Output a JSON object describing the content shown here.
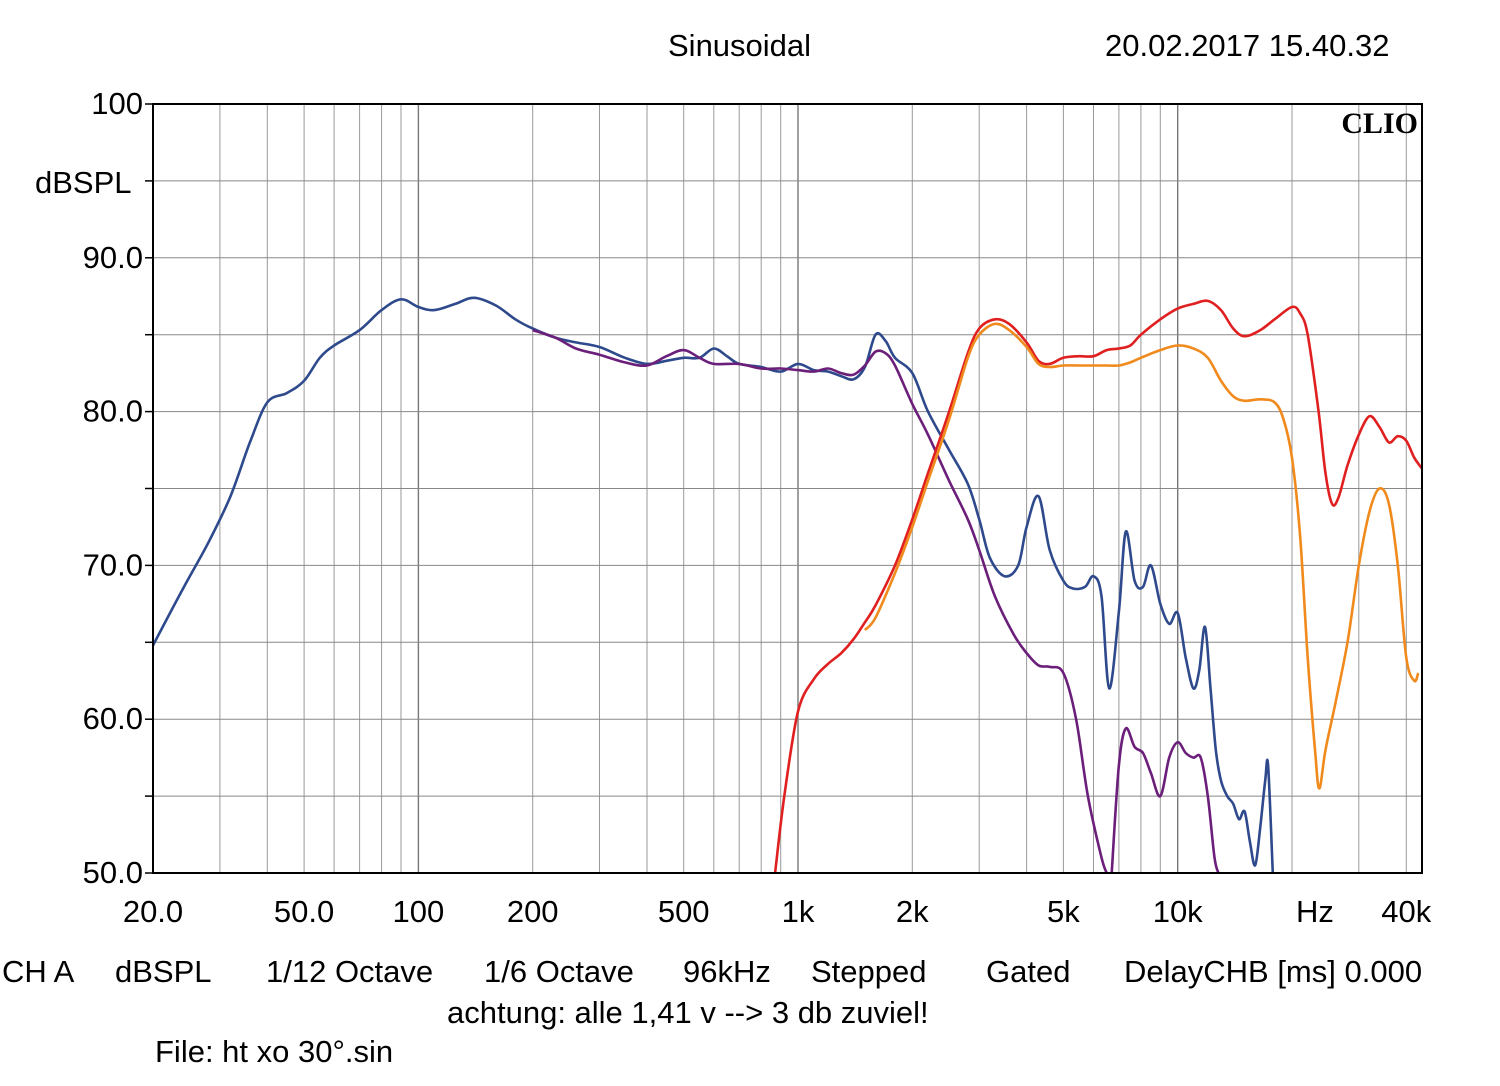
{
  "header": {
    "title": "Sinusoidal",
    "timestamp": "20.02.2017 15.40.32"
  },
  "brand": "CLIO",
  "chart_data": {
    "type": "line",
    "xscale": "log",
    "xlim": [
      20,
      44000
    ],
    "ylim": [
      50,
      100
    ],
    "ylabel": "dBSPL",
    "xunit": "Hz",
    "grid": true,
    "xticks": [
      {
        "v": 20,
        "label": "20.0"
      },
      {
        "v": 50,
        "label": "50.0"
      },
      {
        "v": 100,
        "label": "100"
      },
      {
        "v": 200,
        "label": "200"
      },
      {
        "v": 500,
        "label": "500"
      },
      {
        "v": 1000,
        "label": "1k"
      },
      {
        "v": 2000,
        "label": "2k"
      },
      {
        "v": 5000,
        "label": "5k"
      },
      {
        "v": 10000,
        "label": "10k"
      },
      {
        "v": 40000,
        "label": "40k"
      }
    ],
    "yticks": [
      {
        "v": 100,
        "label": "100"
      },
      {
        "v": 90,
        "label": "90.0"
      },
      {
        "v": 80,
        "label": "80.0"
      },
      {
        "v": 70,
        "label": "70.0"
      },
      {
        "v": 60,
        "label": "60.0"
      },
      {
        "v": 50,
        "label": "50.0"
      }
    ],
    "series": [
      {
        "color": "#2e4a8c",
        "points": [
          [
            20,
            64.8
          ],
          [
            24,
            68.5
          ],
          [
            28,
            71.5
          ],
          [
            32,
            74.5
          ],
          [
            36,
            78
          ],
          [
            40,
            80.6
          ],
          [
            45,
            81.2
          ],
          [
            50,
            82
          ],
          [
            55,
            83.5
          ],
          [
            60,
            84.3
          ],
          [
            70,
            85.3
          ],
          [
            80,
            86.6
          ],
          [
            90,
            87.3
          ],
          [
            100,
            86.8
          ],
          [
            110,
            86.6
          ],
          [
            125,
            87
          ],
          [
            140,
            87.4
          ],
          [
            160,
            86.9
          ],
          [
            180,
            86
          ],
          [
            200,
            85.4
          ],
          [
            230,
            84.8
          ],
          [
            260,
            84.5
          ],
          [
            300,
            84.2
          ],
          [
            350,
            83.5
          ],
          [
            400,
            83.1
          ],
          [
            450,
            83.3
          ],
          [
            500,
            83.5
          ],
          [
            550,
            83.5
          ],
          [
            600,
            84.1
          ],
          [
            650,
            83.6
          ],
          [
            700,
            83.1
          ],
          [
            800,
            82.9
          ],
          [
            900,
            82.6
          ],
          [
            1000,
            83.1
          ],
          [
            1100,
            82.7
          ],
          [
            1200,
            82.6
          ],
          [
            1300,
            82.3
          ],
          [
            1400,
            82.1
          ],
          [
            1500,
            82.9
          ],
          [
            1600,
            85
          ],
          [
            1700,
            84.6
          ],
          [
            1800,
            83.5
          ],
          [
            2000,
            82.5
          ],
          [
            2200,
            80
          ],
          [
            2500,
            77.5
          ],
          [
            2800,
            75.3
          ],
          [
            3000,
            73
          ],
          [
            3200,
            70.5
          ],
          [
            3500,
            69.3
          ],
          [
            3800,
            70
          ],
          [
            4000,
            72.5
          ],
          [
            4300,
            74.5
          ],
          [
            4600,
            71
          ],
          [
            5000,
            69
          ],
          [
            5300,
            68.5
          ],
          [
            5700,
            68.6
          ],
          [
            6000,
            69.3
          ],
          [
            6300,
            68
          ],
          [
            6600,
            62
          ],
          [
            7000,
            67
          ],
          [
            7300,
            72.2
          ],
          [
            7700,
            69
          ],
          [
            8100,
            68.6
          ],
          [
            8500,
            70
          ],
          [
            9000,
            67.5
          ],
          [
            9500,
            66.2
          ],
          [
            10000,
            66.9
          ],
          [
            10500,
            64
          ],
          [
            11000,
            62
          ],
          [
            11400,
            63.2
          ],
          [
            11800,
            66
          ],
          [
            12200,
            62
          ],
          [
            12600,
            58
          ],
          [
            13000,
            56
          ],
          [
            13500,
            55
          ],
          [
            14000,
            54.5
          ],
          [
            14500,
            53.5
          ],
          [
            15000,
            54
          ],
          [
            15500,
            52
          ],
          [
            16000,
            50.5
          ],
          [
            16500,
            53
          ],
          [
            17000,
            56
          ],
          [
            17300,
            57
          ],
          [
            17800,
            50
          ]
        ]
      },
      {
        "color": "#6b1f7a",
        "points": [
          [
            200,
            85.3
          ],
          [
            230,
            84.8
          ],
          [
            260,
            84.1
          ],
          [
            300,
            83.7
          ],
          [
            350,
            83.2
          ],
          [
            400,
            83
          ],
          [
            450,
            83.6
          ],
          [
            500,
            84
          ],
          [
            550,
            83.5
          ],
          [
            600,
            83.1
          ],
          [
            700,
            83.1
          ],
          [
            800,
            82.8
          ],
          [
            900,
            82.8
          ],
          [
            1000,
            82.7
          ],
          [
            1100,
            82.6
          ],
          [
            1200,
            82.8
          ],
          [
            1300,
            82.5
          ],
          [
            1400,
            82.4
          ],
          [
            1500,
            83
          ],
          [
            1600,
            83.9
          ],
          [
            1700,
            83.8
          ],
          [
            1800,
            83
          ],
          [
            2000,
            80.5
          ],
          [
            2200,
            78.5
          ],
          [
            2500,
            75.5
          ],
          [
            2800,
            73
          ],
          [
            3000,
            71
          ],
          [
            3300,
            68
          ],
          [
            3700,
            65.5
          ],
          [
            4000,
            64.3
          ],
          [
            4300,
            63.5
          ],
          [
            4600,
            63.4
          ],
          [
            5000,
            63
          ],
          [
            5400,
            60
          ],
          [
            5800,
            55
          ],
          [
            6300,
            51
          ],
          [
            6500,
            50
          ]
        ]
      },
      {
        "color": "#6b1f7a",
        "points": [
          [
            6700,
            50
          ],
          [
            7000,
            57
          ],
          [
            7300,
            59.4
          ],
          [
            7700,
            58.2
          ],
          [
            8100,
            57.8
          ],
          [
            8500,
            56.5
          ],
          [
            9000,
            55
          ],
          [
            9500,
            57.5
          ],
          [
            10000,
            58.5
          ],
          [
            10500,
            57.8
          ],
          [
            11000,
            57.5
          ],
          [
            11500,
            57.5
          ],
          [
            12000,
            55
          ],
          [
            12500,
            51
          ],
          [
            12800,
            50
          ]
        ]
      },
      {
        "color": "#e02020",
        "points": [
          [
            870,
            50
          ],
          [
            920,
            55
          ],
          [
            1000,
            60.5
          ],
          [
            1100,
            62.6
          ],
          [
            1200,
            63.6
          ],
          [
            1300,
            64.3
          ],
          [
            1400,
            65.2
          ],
          [
            1500,
            66.3
          ],
          [
            1600,
            67.4
          ],
          [
            1800,
            70
          ],
          [
            2000,
            73
          ],
          [
            2200,
            76
          ],
          [
            2500,
            80
          ],
          [
            2800,
            83.8
          ],
          [
            3000,
            85.4
          ],
          [
            3300,
            86
          ],
          [
            3600,
            85.7
          ],
          [
            4000,
            84.5
          ],
          [
            4300,
            83.3
          ],
          [
            4600,
            83.1
          ],
          [
            5000,
            83.5
          ],
          [
            5500,
            83.6
          ],
          [
            6000,
            83.6
          ],
          [
            6500,
            84
          ],
          [
            7000,
            84.1
          ],
          [
            7500,
            84.3
          ],
          [
            8000,
            85
          ],
          [
            9000,
            86
          ],
          [
            10000,
            86.7
          ],
          [
            11000,
            87
          ],
          [
            12000,
            87.2
          ],
          [
            13000,
            86.6
          ],
          [
            14000,
            85.4
          ],
          [
            15000,
            84.9
          ],
          [
            16500,
            85.3
          ],
          [
            18000,
            86
          ],
          [
            20000,
            86.8
          ],
          [
            21000,
            86.4
          ],
          [
            22000,
            85
          ],
          [
            23500,
            80
          ],
          [
            24500,
            76
          ],
          [
            25500,
            74
          ],
          [
            26500,
            74.4
          ],
          [
            28000,
            76.5
          ],
          [
            30000,
            78.5
          ],
          [
            32000,
            79.7
          ],
          [
            34000,
            79
          ],
          [
            36000,
            78
          ],
          [
            38000,
            78.4
          ],
          [
            40000,
            78.1
          ],
          [
            42000,
            77
          ],
          [
            44000,
            76.3
          ]
        ]
      },
      {
        "color": "#f08a1c",
        "points": [
          [
            1500,
            65.8
          ],
          [
            1600,
            66.6
          ],
          [
            1800,
            69.5
          ],
          [
            2000,
            72.5
          ],
          [
            2200,
            75.5
          ],
          [
            2500,
            79.5
          ],
          [
            2800,
            83.5
          ],
          [
            3000,
            85
          ],
          [
            3300,
            85.7
          ],
          [
            3600,
            85.3
          ],
          [
            4000,
            84.2
          ],
          [
            4300,
            83.1
          ],
          [
            4600,
            82.9
          ],
          [
            5000,
            83
          ],
          [
            5500,
            83
          ],
          [
            6000,
            83
          ],
          [
            6500,
            83
          ],
          [
            7000,
            83
          ],
          [
            7500,
            83.2
          ],
          [
            8000,
            83.5
          ],
          [
            9000,
            84
          ],
          [
            10000,
            84.3
          ],
          [
            11000,
            84.1
          ],
          [
            12000,
            83.5
          ],
          [
            13000,
            82
          ],
          [
            14000,
            81
          ],
          [
            15000,
            80.7
          ],
          [
            16500,
            80.8
          ],
          [
            18000,
            80.6
          ],
          [
            19000,
            79.5
          ],
          [
            20000,
            77
          ],
          [
            21000,
            72
          ],
          [
            22000,
            64
          ],
          [
            23000,
            58
          ],
          [
            23600,
            55.5
          ],
          [
            24500,
            58
          ],
          [
            26000,
            61
          ],
          [
            28000,
            65
          ],
          [
            30000,
            70
          ],
          [
            32000,
            73.5
          ],
          [
            34000,
            75
          ],
          [
            36000,
            74
          ],
          [
            38000,
            70
          ],
          [
            40000,
            64
          ],
          [
            42000,
            62.5
          ],
          [
            43000,
            63
          ]
        ]
      }
    ]
  },
  "footer": {
    "ch": "CH A",
    "unit": "dBSPL",
    "res": "1/12 Octave",
    "smooth": "1/6 Octave",
    "rate": "96kHz",
    "mode": "Stepped",
    "gate": "Gated",
    "delay": "DelayCHB [ms] 0.000",
    "note": "achtung: alle 1,41 v --> 3 db zuviel!",
    "file": "File: ht xo 30°.sin"
  }
}
